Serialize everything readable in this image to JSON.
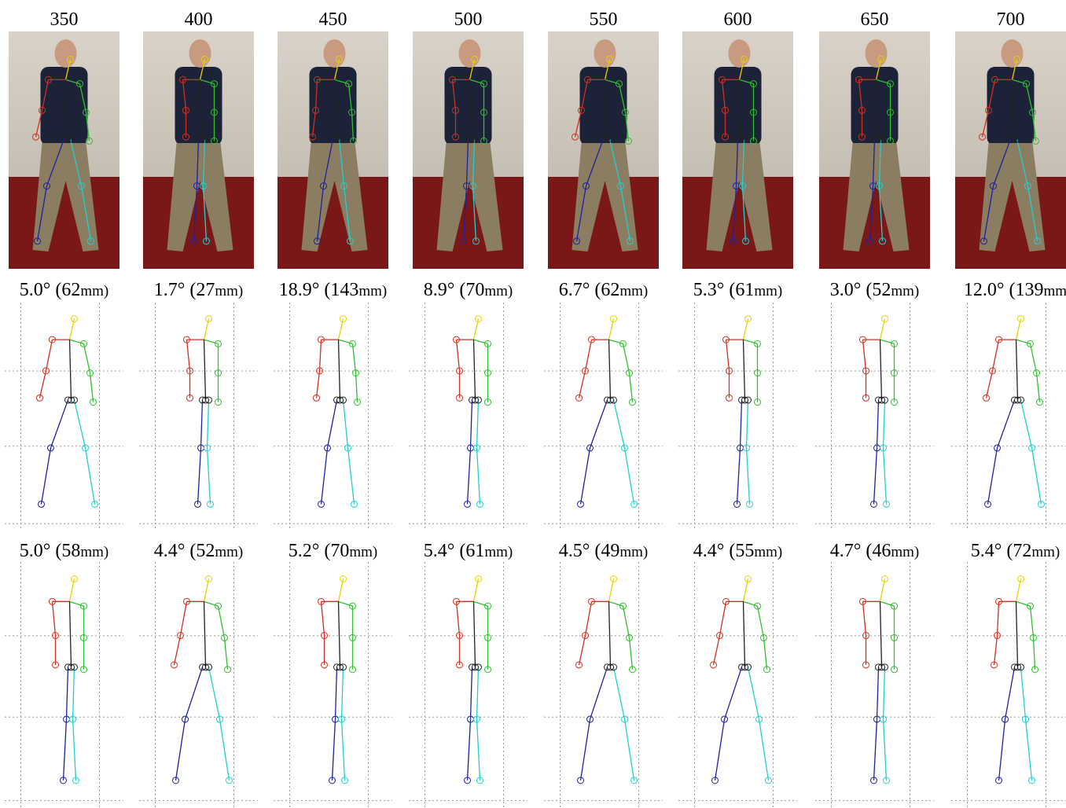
{
  "frames": [
    "350",
    "400",
    "450",
    "500",
    "550",
    "600",
    "650",
    "700"
  ],
  "rows": [
    {
      "errors": [
        {
          "main": "5.0° (62",
          "unit": "mm)"
        },
        {
          "main": "1.7° (27",
          "unit": "mm)"
        },
        {
          "main": "18.9° (143",
          "unit": "mm)"
        },
        {
          "main": "8.9° (70",
          "unit": "mm)"
        },
        {
          "main": "6.7° (62",
          "unit": "mm)"
        },
        {
          "main": "5.3° (61",
          "unit": "mm)"
        },
        {
          "main": "3.0° (52",
          "unit": "mm)"
        },
        {
          "main": "12.0° (139",
          "unit": "mm"
        }
      ]
    },
    {
      "errors": [
        {
          "main": "5.0° (58",
          "unit": "mm)"
        },
        {
          "main": "4.4° (52",
          "unit": "mm)"
        },
        {
          "main": "5.2° (70",
          "unit": "mm)"
        },
        {
          "main": "5.4° (61",
          "unit": "mm)"
        },
        {
          "main": "4.5° (49",
          "unit": "mm)"
        },
        {
          "main": "4.4° (55",
          "unit": "mm)"
        },
        {
          "main": "4.7° (46",
          "unit": "mm)"
        },
        {
          "main": "5.4° (72",
          "unit": "mm)"
        }
      ]
    }
  ]
}
